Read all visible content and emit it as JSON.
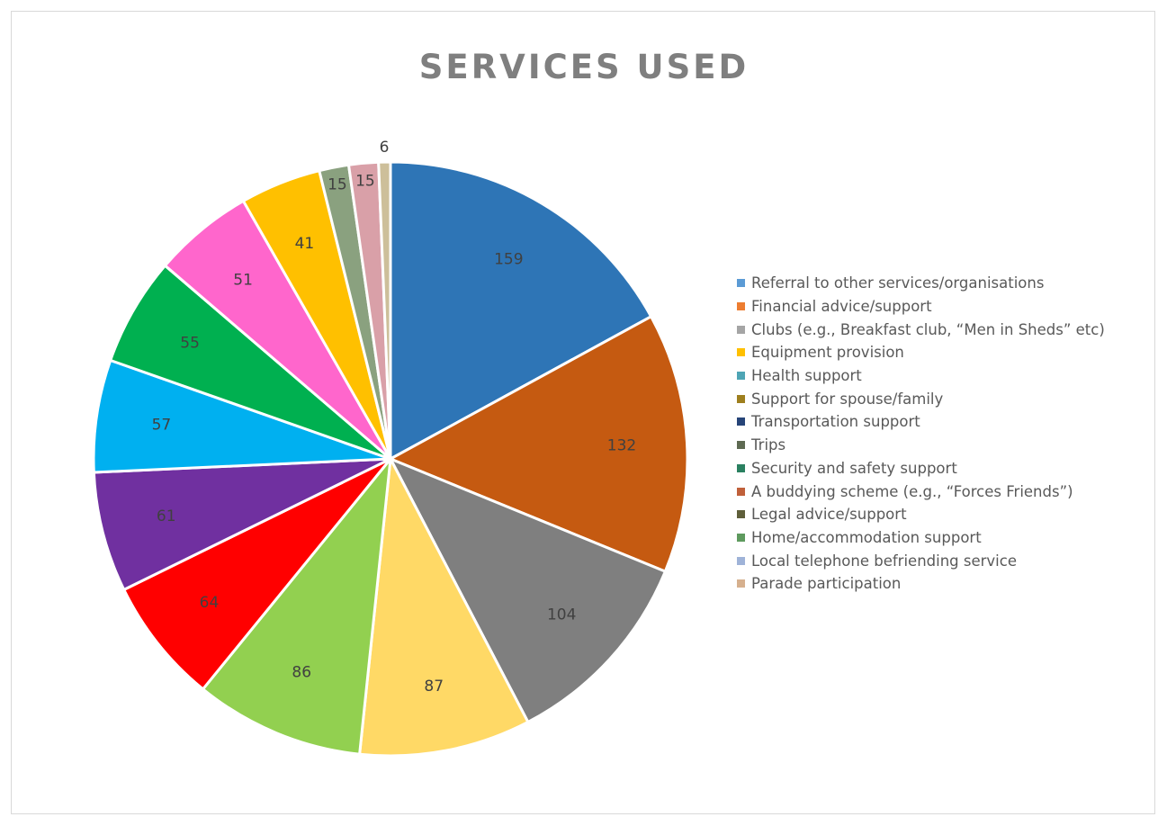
{
  "chart_data": {
    "type": "pie",
    "title": "SERVICES USED",
    "categories": [
      "Referral to other services/organisations",
      "Financial advice/support",
      "Clubs (e.g., Breakfast club, “Men in Sheds” etc)",
      "Equipment provision",
      "Health support",
      "Support for spouse/family",
      "Transportation support",
      "Trips",
      "Security and safety support",
      "A buddying scheme (e.g., “Forces Friends”)",
      "Legal advice/support",
      "Home/accommodation support",
      "Local telephone befriending service",
      "Parade participation"
    ],
    "values": [
      159,
      132,
      104,
      87,
      86,
      64,
      61,
      57,
      55,
      51,
      41,
      15,
      15,
      6
    ],
    "slice_colors": [
      "#2e75b6",
      "#c55a11",
      "#7f7f7f",
      "#ffd966",
      "#92d050",
      "#ff0000",
      "#7030a0",
      "#00b0f0",
      "#00b050",
      "#ff66cc",
      "#ffc000",
      "#8aa17f",
      "#d9a0a8",
      "#cdbf9a"
    ],
    "legend_colors": [
      "#5b9bd5",
      "#ed7d31",
      "#a5a5a5",
      "#ffc000",
      "#4ea5b5",
      "#9e7f1e",
      "#264478",
      "#5e6a52",
      "#2a8060",
      "#c0603a",
      "#5f5f3a",
      "#5e9a5e",
      "#9fb3d8",
      "#d6b08e"
    ],
    "legend_position": "right"
  }
}
